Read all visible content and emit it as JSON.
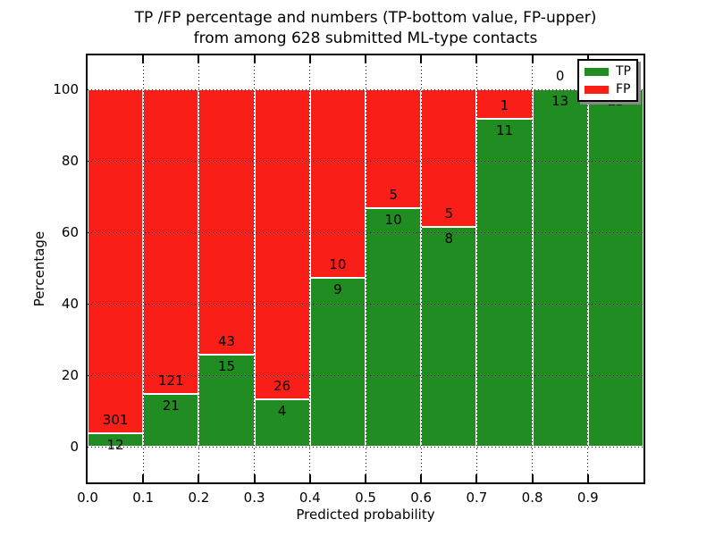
{
  "chart_data": {
    "type": "bar",
    "stacked": true,
    "title_line1": "TP /FP percentage and numbers (TP-bottom value, FP-upper)",
    "title_line2": "from among 628 submitted ML-type contacts",
    "xlabel": "Predicted probability",
    "ylabel": "Percentage",
    "bin_width": 0.1,
    "bin_starts": [
      0.0,
      0.1,
      0.2,
      0.3,
      0.4,
      0.5,
      0.6,
      0.7,
      0.8,
      0.9
    ],
    "series": [
      {
        "name": "TP",
        "color": "#208c21",
        "counts": [
          12,
          21,
          15,
          4,
          9,
          10,
          8,
          11,
          13,
          13
        ]
      },
      {
        "name": "FP",
        "color": "#fa1e19",
        "counts": [
          301,
          121,
          43,
          26,
          10,
          5,
          5,
          1,
          0,
          0
        ]
      }
    ],
    "tp_percent": [
      3.8,
      14.8,
      25.9,
      13.3,
      47.4,
      66.7,
      61.5,
      91.7,
      100.0,
      100.0
    ],
    "x_tick_labels": [
      "0.0",
      "0.1",
      "0.2",
      "0.3",
      "0.4",
      "0.5",
      "0.6",
      "0.7",
      "0.8",
      "0.9"
    ],
    "y_ticks": [
      0,
      20,
      40,
      60,
      80,
      100
    ],
    "xlim": [
      0.0,
      1.0
    ],
    "ylim": [
      -10,
      110
    ],
    "grid": "dotted, drawn above bars",
    "legend": {
      "position": "upper right",
      "entries": [
        {
          "label": "TP",
          "color": "#208c21"
        },
        {
          "label": "FP",
          "color": "#fa1e19"
        }
      ]
    }
  }
}
